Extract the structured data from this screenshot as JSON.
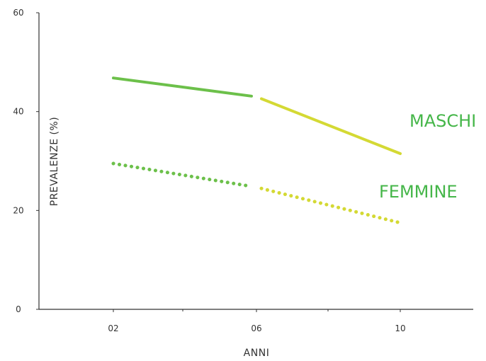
{
  "chart_data": {
    "type": "line",
    "title": "",
    "xlabel": "ANNI",
    "ylabel": "PREVALENZE (%)",
    "x": [
      "02",
      "06",
      "10"
    ],
    "ylim": [
      0,
      60
    ],
    "yticks": [
      "0",
      "20",
      "40",
      "60"
    ],
    "grid": false,
    "legend": "inline-right",
    "series": [
      {
        "name": "MASCHI",
        "values": [
          46.8,
          43.0,
          31.5
        ],
        "style": "solid",
        "colors": [
          "#6cc04a",
          "#d4d934"
        ]
      },
      {
        "name": "FEMMINE",
        "values": [
          29.5,
          24.7,
          17.5
        ],
        "style": "dotted",
        "colors": [
          "#6cc04a",
          "#d4d934"
        ]
      }
    ],
    "label_colors": {
      "MASCHI": "#45b649",
      "FEMMINE": "#45b649"
    }
  }
}
